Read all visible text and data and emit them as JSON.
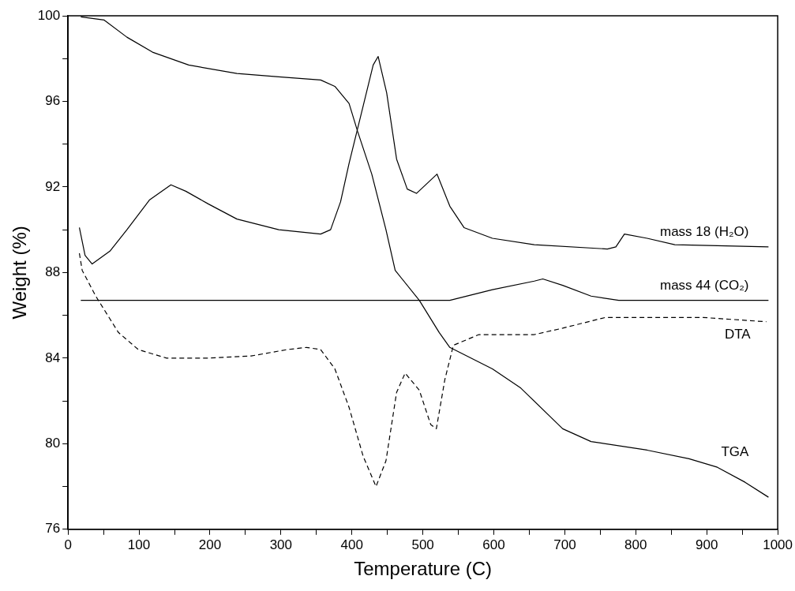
{
  "chart_data": {
    "type": "line",
    "xlabel": "Temperature (C)",
    "ylabel": "Weight (%)",
    "xlim": [
      0,
      1000
    ],
    "ylim": [
      76,
      100
    ],
    "xticks": [
      0,
      {
        "value": 50,
        "label": null
      },
      100,
      {
        "value": 150,
        "label": null
      },
      200,
      {
        "value": 250,
        "label": null
      },
      300,
      {
        "value": 350,
        "label": null
      },
      400,
      {
        "value": 450,
        "label": null
      },
      500,
      {
        "value": 550,
        "label": null
      },
      600,
      {
        "value": 650,
        "label": null
      },
      700,
      {
        "value": 750,
        "label": null
      },
      800,
      {
        "value": 850,
        "label": null
      },
      900,
      {
        "value": 950,
        "label": null
      },
      1000
    ],
    "yticks": [
      76,
      {
        "value": 78,
        "label": null
      },
      80,
      {
        "value": 82,
        "label": null
      },
      84,
      {
        "value": 86,
        "label": null
      },
      88,
      {
        "value": 90,
        "label": null
      },
      92,
      {
        "value": 94,
        "label": null
      },
      96,
      {
        "value": 98,
        "label": null
      },
      100
    ],
    "grid": false,
    "legend": false,
    "marker": "none",
    "series": [
      {
        "name": "mass 18 (H₂O)",
        "color": "#000000",
        "line_style": "solid",
        "x": [
          16,
          24,
          34,
          59,
          83,
          115,
          145,
          166,
          198,
          238,
          297,
          356,
          370,
          384,
          396,
          416,
          430,
          437,
          449,
          463,
          478,
          491,
          520,
          538,
          558,
          598,
          657,
          760,
          772,
          784,
          816,
          855,
          987
        ],
        "values": [
          90.1,
          88.8,
          88.4,
          89.0,
          90.0,
          91.4,
          92.1,
          91.8,
          91.2,
          90.5,
          90.0,
          89.8,
          90.0,
          91.3,
          93.1,
          95.8,
          97.7,
          98.1,
          96.4,
          93.3,
          91.9,
          91.7,
          92.6,
          91.1,
          90.1,
          89.6,
          89.3,
          89.1,
          89.2,
          89.8,
          89.6,
          89.3,
          89.2
        ]
      },
      {
        "name": "mass 44 (CO₂)",
        "color": "#000000",
        "line_style": "solid",
        "x": [
          18,
          100,
          200,
          300,
          400,
          500,
          538,
          598,
          657,
          669,
          697,
          737,
          776,
          850,
          987
        ],
        "values": [
          86.7,
          86.7,
          86.7,
          86.7,
          86.7,
          86.7,
          86.7,
          87.2,
          87.6,
          87.7,
          87.4,
          86.9,
          86.7,
          86.7,
          86.7
        ]
      },
      {
        "name": "DTA",
        "color": "#000000",
        "line_style": "dashed",
        "x": [
          16,
          20,
          39,
          71,
          99,
          139,
          198,
          258,
          309,
          336,
          356,
          376,
          396,
          416,
          434,
          448,
          463,
          475,
          495,
          511,
          519,
          531,
          543,
          579,
          657,
          697,
          757,
          835,
          895,
          984
        ],
        "values": [
          88.9,
          88.1,
          86.9,
          85.2,
          84.4,
          84.0,
          84.0,
          84.1,
          84.4,
          84.5,
          84.4,
          83.5,
          81.7,
          79.4,
          78.0,
          79.2,
          82.4,
          83.3,
          82.5,
          80.9,
          80.7,
          83.0,
          84.6,
          85.1,
          85.1,
          85.4,
          85.9,
          85.9,
          85.9,
          85.7
        ]
      },
      {
        "name": "TGA",
        "color": "#000000",
        "line_style": "solid",
        "x": [
          18,
          51,
          83,
          119,
          170,
          238,
          297,
          356,
          376,
          396,
          408,
          428,
          448,
          461,
          495,
          523,
          538,
          598,
          638,
          697,
          737,
          816,
          875,
          915,
          954,
          987
        ],
        "values": [
          99.95,
          99.8,
          99.0,
          98.3,
          97.7,
          97.3,
          97.15,
          97.0,
          96.7,
          95.9,
          94.6,
          92.6,
          90.0,
          88.1,
          86.7,
          85.2,
          84.5,
          83.5,
          82.6,
          80.7,
          80.1,
          79.7,
          79.3,
          78.9,
          78.2,
          77.5
        ]
      }
    ]
  }
}
